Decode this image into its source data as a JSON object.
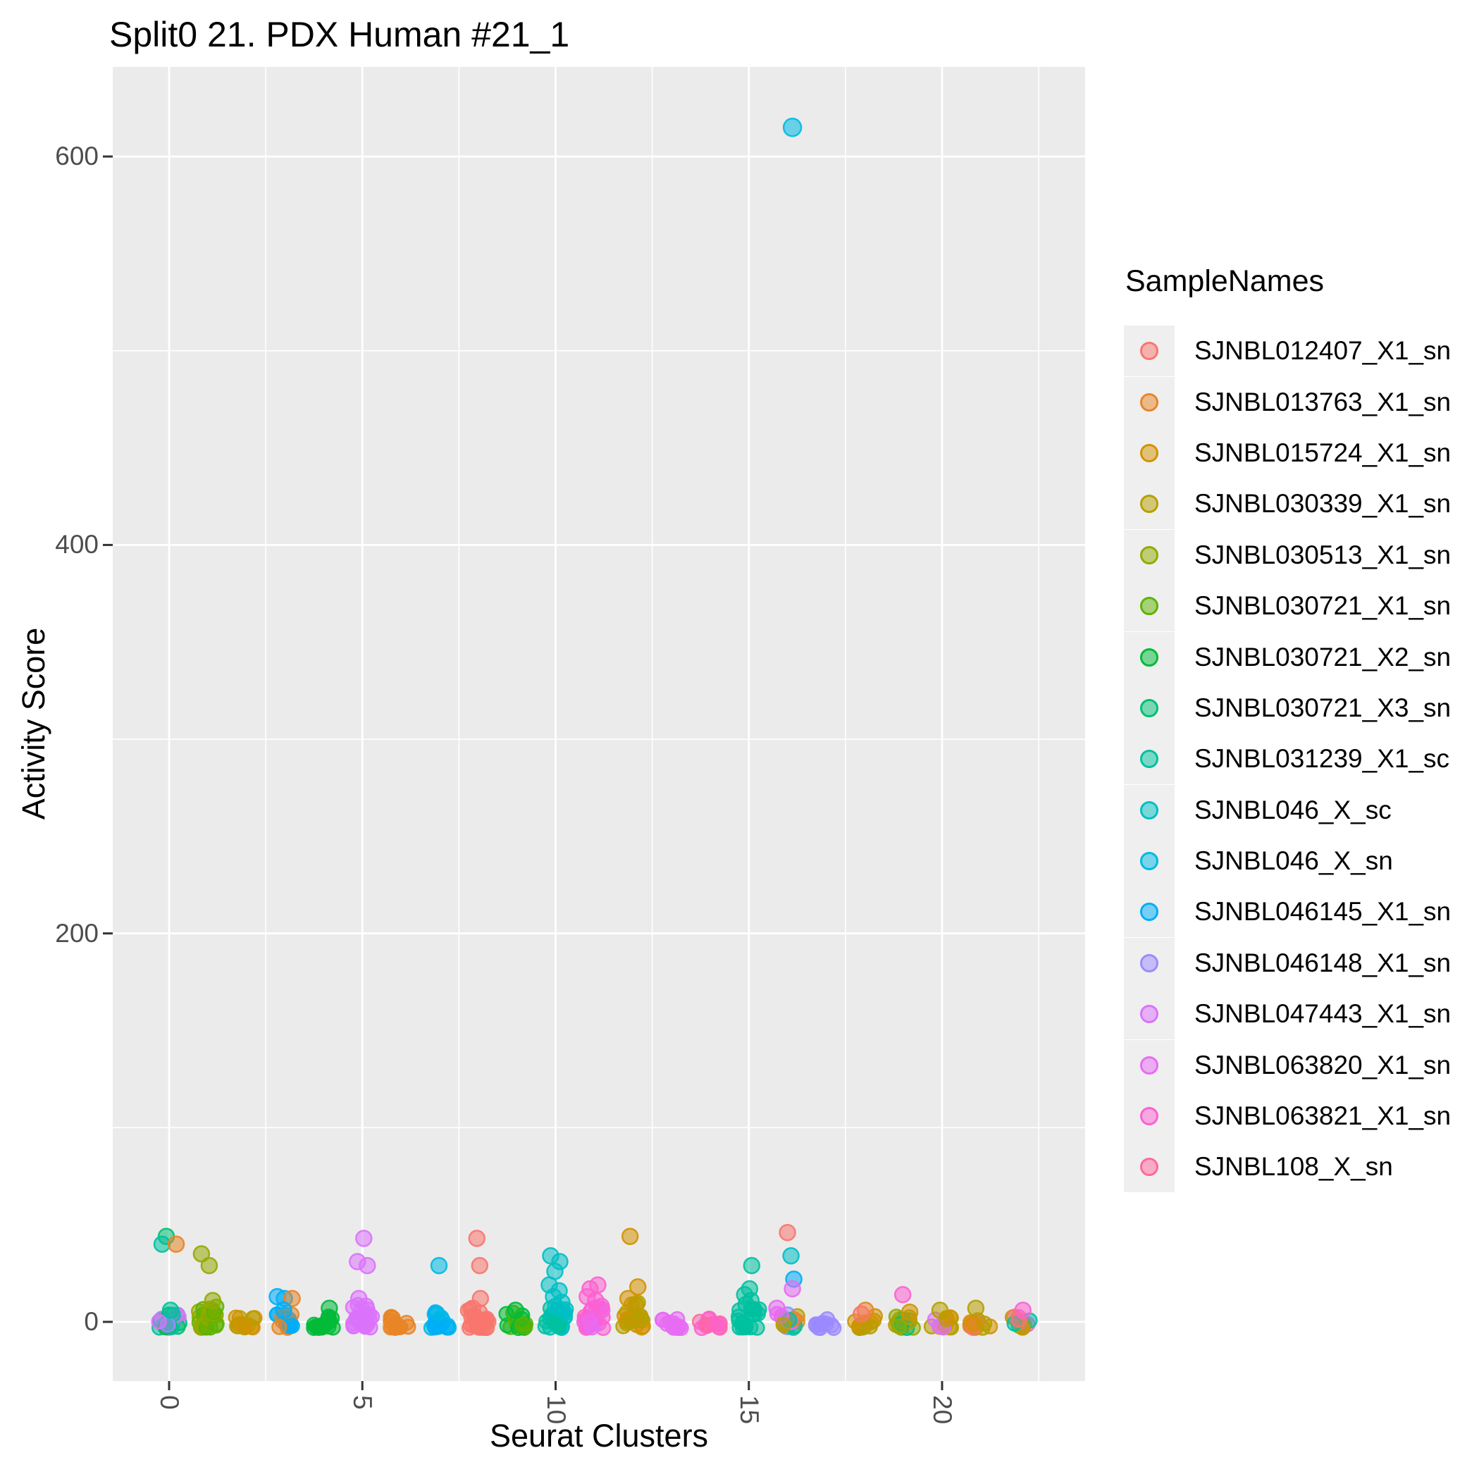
{
  "title": "Split0 21. PDX Human #21_1",
  "x_axis": {
    "label": "Seurat Clusters",
    "tick_labels": [
      "0",
      "5",
      "10",
      "15",
      "20"
    ]
  },
  "y_axis": {
    "label": "Activity Score",
    "tick_labels": [
      "0",
      "200",
      "400",
      "600"
    ]
  },
  "legend": {
    "title": "SampleNames"
  },
  "style": {
    "panel_bg": "#EBEBEB",
    "grid_color": "#FFFFFF",
    "tick_mark_color": "#333333",
    "tick_label_color": "#4D4D4D",
    "legend_key_bg": "#EFEFEF",
    "point_fill_opacity": 0.55,
    "point_stroke_opacity": 0.9
  },
  "chart_data": {
    "type": "scatter",
    "subtype": "jitter",
    "title": "Split0 21. PDX Human #21_1",
    "xlabel": "Seurat Clusters",
    "ylabel": "Activity Score",
    "x_ticks": [
      0,
      5,
      10,
      15,
      20
    ],
    "x_minor_ticks": [
      2.5,
      7.5,
      12.5,
      17.5,
      22.5
    ],
    "y_ticks": [
      0,
      200,
      400,
      600
    ],
    "y_minor_ticks": [
      100,
      300,
      500
    ],
    "xlim": [
      -1.5,
      23.7
    ],
    "ylim": [
      -30,
      646
    ],
    "grid": true,
    "legend_position": "right",
    "legend_title": "SampleNames",
    "samples": [
      {
        "name": "SJNBL012407_X1_sn",
        "color": "#F8766D"
      },
      {
        "name": "SJNBL013763_X1_sn",
        "color": "#E88526"
      },
      {
        "name": "SJNBL015724_X1_sn",
        "color": "#D39200"
      },
      {
        "name": "SJNBL030339_X1_sn",
        "color": "#B79F00"
      },
      {
        "name": "SJNBL030513_X1_sn",
        "color": "#93AA00"
      },
      {
        "name": "SJNBL030721_X1_sn",
        "color": "#5EB300"
      },
      {
        "name": "SJNBL030721_X2_sn",
        "color": "#00BA38"
      },
      {
        "name": "SJNBL030721_X3_sn",
        "color": "#00BF74"
      },
      {
        "name": "SJNBL031239_X1_sc",
        "color": "#00C19F"
      },
      {
        "name": "SJNBL046_X_sc",
        "color": "#00BFC4"
      },
      {
        "name": "SJNBL046_X_sn",
        "color": "#00B9E3"
      },
      {
        "name": "SJNBL046145_X1_sn",
        "color": "#00ADFA"
      },
      {
        "name": "SJNBL046148_X1_sn",
        "color": "#9B8BFF"
      },
      {
        "name": "SJNBL047443_X1_sn",
        "color": "#DB72FB"
      },
      {
        "name": "SJNBL063820_X1_sn",
        "color": "#E76BF3"
      },
      {
        "name": "SJNBL063821_X1_sn",
        "color": "#FD61D1"
      },
      {
        "name": "SJNBL108_X_sn",
        "color": "#FF689E"
      }
    ],
    "base_clusters": [
      {
        "cluster": 0,
        "samples": [
          "SJNBL030721_X2_sn",
          "SJNBL030721_X3_sn",
          "SJNBL031239_X1_sc",
          "SJNBL046148_X1_sn",
          "SJNBL047443_X1_sn"
        ],
        "count": 20,
        "vmax": 4
      },
      {
        "cluster": 1,
        "samples": [
          "SJNBL030513_X1_sn",
          "SJNBL030721_X1_sn"
        ],
        "count": 24,
        "vmax": 9
      },
      {
        "cluster": 2,
        "samples": [
          "SJNBL030339_X1_sn",
          "SJNBL015724_X1_sn"
        ],
        "count": 16,
        "vmax": 3
      },
      {
        "cluster": 3,
        "samples": [
          "SJNBL046145_X1_sn",
          "SJNBL046145_X1_sn",
          "SJNBL013763_X1_sn"
        ],
        "count": 18,
        "vmax": 4
      },
      {
        "cluster": 4,
        "samples": [
          "SJNBL030721_X2_sn"
        ],
        "count": 16,
        "vmax": 4
      },
      {
        "cluster": 5,
        "samples": [
          "SJNBL047443_X1_sn"
        ],
        "count": 22,
        "vmax": 9
      },
      {
        "cluster": 6,
        "samples": [
          "SJNBL013763_X1_sn"
        ],
        "count": 14,
        "vmax": 3
      },
      {
        "cluster": 7,
        "samples": [
          "SJNBL046_X_sn",
          "SJNBL046145_X1_sn"
        ],
        "count": 18,
        "vmax": 5
      },
      {
        "cluster": 8,
        "samples": [
          "SJNBL012407_X1_sn"
        ],
        "count": 22,
        "vmax": 8
      },
      {
        "cluster": 9,
        "samples": [
          "SJNBL030721_X2_sn",
          "SJNBL030721_X1_sn"
        ],
        "count": 16,
        "vmax": 5
      },
      {
        "cluster": 10,
        "samples": [
          "SJNBL046_X_sc",
          "SJNBL031239_X1_sc"
        ],
        "count": 24,
        "vmax": 7
      },
      {
        "cluster": 11,
        "samples": [
          "SJNBL063821_X1_sn",
          "SJNBL063820_X1_sn"
        ],
        "count": 24,
        "vmax": 8
      },
      {
        "cluster": 12,
        "samples": [
          "SJNBL015724_X1_sn",
          "SJNBL030339_X1_sn"
        ],
        "count": 20,
        "vmax": 11
      },
      {
        "cluster": 13,
        "samples": [
          "SJNBL063820_X1_sn"
        ],
        "count": 12,
        "vmax": 2
      },
      {
        "cluster": 14,
        "samples": [
          "SJNBL108_X_sn",
          "SJNBL063821_X1_sn"
        ],
        "count": 12,
        "vmax": 2
      },
      {
        "cluster": 15,
        "samples": [
          "SJNBL031239_X1_sc"
        ],
        "count": 20,
        "vmax": 7
      },
      {
        "cluster": 16,
        "samples": [
          "SJNBL031239_X1_sc",
          "SJNBL063820_X1_sn",
          "SJNBL030339_X1_sn",
          "SJNBL046148_X1_sn",
          "SJNBL013763_X1_sn"
        ],
        "count": 18,
        "vmax": 6
      },
      {
        "cluster": 17,
        "samples": [
          "SJNBL046148_X1_sn"
        ],
        "count": 12,
        "vmax": 2
      },
      {
        "cluster": 18,
        "samples": [
          "SJNBL030339_X1_sn",
          "SJNBL015724_X1_sn"
        ],
        "count": 14,
        "vmax": 3
      },
      {
        "cluster": 19,
        "samples": [
          "SJNBL030339_X1_sn",
          "SJNBL030513_X1_sn",
          "SJNBL030721_X3_sn"
        ],
        "count": 14,
        "vmax": 3
      },
      {
        "cluster": 20,
        "samples": [
          "SJNBL030339_X1_sn",
          "SJNBL015724_X1_sn",
          "SJNBL047443_X1_sn"
        ],
        "count": 14,
        "vmax": 3
      },
      {
        "cluster": 21,
        "samples": [
          "SJNBL030339_X1_sn",
          "SJNBL015724_X1_sn",
          "SJNBL012407_X1_sn"
        ],
        "count": 14,
        "vmax": 3
      },
      {
        "cluster": 22,
        "samples": [
          "SJNBL012407_X1_sn",
          "SJNBL013763_X1_sn",
          "SJNBL063821_X1_sn",
          "SJNBL030339_X1_sn",
          "SJNBL031239_X1_sc"
        ],
        "count": 16,
        "vmax": 3
      }
    ],
    "points": [
      {
        "cluster": 0,
        "value": 44,
        "sample": "SJNBL030721_X3_sn",
        "dx": -4
      },
      {
        "cluster": 0,
        "value": 40,
        "sample": "SJNBL031239_X1_sc",
        "dx": -10
      },
      {
        "cluster": 0,
        "value": 40,
        "sample": "SJNBL013763_X1_sn",
        "dx": 10
      },
      {
        "cluster": 0,
        "value": 6,
        "sample": "SJNBL031239_X1_sc",
        "dx": 2
      },
      {
        "cluster": 1,
        "value": 35,
        "sample": "SJNBL030513_X1_sn",
        "dx": -9
      },
      {
        "cluster": 1,
        "value": 29,
        "sample": "SJNBL030513_X1_sn",
        "dx": 2
      },
      {
        "cluster": 1,
        "value": 11,
        "sample": "SJNBL030513_X1_sn",
        "dx": 7
      },
      {
        "cluster": 3,
        "value": 13,
        "sample": "SJNBL046145_X1_sn",
        "dx": -11
      },
      {
        "cluster": 3,
        "value": 12,
        "sample": "SJNBL046145_X1_sn",
        "dx": -1
      },
      {
        "cluster": 3,
        "value": 12,
        "sample": "SJNBL013763_X1_sn",
        "dx": 10
      },
      {
        "cluster": 3,
        "value": 6,
        "sample": "SJNBL046145_X1_sn",
        "dx": -2
      },
      {
        "cluster": 4,
        "value": 7,
        "sample": "SJNBL030721_X2_sn",
        "dx": 8
      },
      {
        "cluster": 5,
        "value": 43,
        "sample": "SJNBL047443_X1_sn",
        "dx": 2
      },
      {
        "cluster": 5,
        "value": 31,
        "sample": "SJNBL047443_X1_sn",
        "dx": -7
      },
      {
        "cluster": 5,
        "value": 29,
        "sample": "SJNBL047443_X1_sn",
        "dx": 7
      },
      {
        "cluster": 5,
        "value": 12,
        "sample": "SJNBL047443_X1_sn",
        "dx": -5
      },
      {
        "cluster": 5,
        "value": 8,
        "sample": "SJNBL047443_X1_sn",
        "dx": 5
      },
      {
        "cluster": 7,
        "value": 29,
        "sample": "SJNBL046_X_sn",
        "dx": -1
      },
      {
        "cluster": 8,
        "value": 43,
        "sample": "SJNBL012407_X1_sn",
        "dx": -2
      },
      {
        "cluster": 8,
        "value": 29,
        "sample": "SJNBL012407_X1_sn",
        "dx": 2
      },
      {
        "cluster": 8,
        "value": 12,
        "sample": "SJNBL012407_X1_sn",
        "dx": 3
      },
      {
        "cluster": 8,
        "value": 7,
        "sample": "SJNBL012407_X1_sn",
        "dx": -8
      },
      {
        "cluster": 9,
        "value": 6,
        "sample": "SJNBL030721_X2_sn",
        "dx": -2
      },
      {
        "cluster": 10,
        "value": 34,
        "sample": "SJNBL046_X_sc",
        "dx": -7
      },
      {
        "cluster": 10,
        "value": 31,
        "sample": "SJNBL046_X_sc",
        "dx": 6
      },
      {
        "cluster": 10,
        "value": 26,
        "sample": "SJNBL046_X_sc",
        "dx": -1
      },
      {
        "cluster": 10,
        "value": 19,
        "sample": "SJNBL046_X_sc",
        "dx": -9
      },
      {
        "cluster": 10,
        "value": 16,
        "sample": "SJNBL046_X_sc",
        "dx": 5
      },
      {
        "cluster": 10,
        "value": 13,
        "sample": "SJNBL046_X_sc",
        "dx": -3
      },
      {
        "cluster": 10,
        "value": 10,
        "sample": "SJNBL046_X_sc",
        "dx": 9
      },
      {
        "cluster": 10,
        "value": 8,
        "sample": "SJNBL046_X_sc",
        "dx": 0
      },
      {
        "cluster": 11,
        "value": 19,
        "sample": "SJNBL063821_X1_sn",
        "dx": 5
      },
      {
        "cluster": 11,
        "value": 17,
        "sample": "SJNBL063821_X1_sn",
        "dx": -6
      },
      {
        "cluster": 11,
        "value": 13,
        "sample": "SJNBL063821_X1_sn",
        "dx": -10
      },
      {
        "cluster": 11,
        "value": 11,
        "sample": "SJNBL063821_X1_sn",
        "dx": 2
      },
      {
        "cluster": 11,
        "value": 8,
        "sample": "SJNBL063821_X1_sn",
        "dx": 10
      },
      {
        "cluster": 12,
        "value": 44,
        "sample": "SJNBL015724_X1_sn",
        "dx": -4
      },
      {
        "cluster": 12,
        "value": 18,
        "sample": "SJNBL015724_X1_sn",
        "dx": 7
      },
      {
        "cluster": 12,
        "value": 12,
        "sample": "SJNBL015724_X1_sn",
        "dx": -7
      },
      {
        "cluster": 12,
        "value": 9,
        "sample": "SJNBL030339_X1_sn",
        "dx": 4
      },
      {
        "cluster": 15,
        "value": 29,
        "sample": "SJNBL031239_X1_sc",
        "dx": 4
      },
      {
        "cluster": 15,
        "value": 17,
        "sample": "SJNBL031239_X1_sc",
        "dx": 1
      },
      {
        "cluster": 15,
        "value": 14,
        "sample": "SJNBL031239_X1_sc",
        "dx": -6
      },
      {
        "cluster": 15,
        "value": 11,
        "sample": "SJNBL031239_X1_sc",
        "dx": 3
      },
      {
        "cluster": 15,
        "value": 9,
        "sample": "SJNBL031239_X1_sc",
        "dx": -4
      },
      {
        "cluster": 16,
        "value": 46,
        "sample": "SJNBL012407_X1_sn",
        "dx": 0
      },
      {
        "cluster": 16,
        "value": 34,
        "sample": "SJNBL046_X_sc",
        "dx": 5
      },
      {
        "cluster": 16,
        "value": 22,
        "sample": "SJNBL046145_X1_sn",
        "dx": 9
      },
      {
        "cluster": 16,
        "value": 17,
        "sample": "SJNBL063820_X1_sn",
        "dx": 7
      },
      {
        "cluster": 16,
        "value": 7,
        "sample": "SJNBL063820_X1_sn",
        "dx": -15
      },
      {
        "cluster": 18,
        "value": 6,
        "sample": "SJNBL013763_X1_sn",
        "dx": 1
      },
      {
        "cluster": 18,
        "value": 4,
        "sample": "SJNBL012407_X1_sn",
        "dx": -5
      },
      {
        "cluster": 19,
        "value": 14,
        "sample": "SJNBL063821_X1_sn",
        "dx": -1
      },
      {
        "cluster": 19,
        "value": 5,
        "sample": "SJNBL015724_X1_sn",
        "dx": 9
      },
      {
        "cluster": 20,
        "value": 6,
        "sample": "SJNBL030339_X1_sn",
        "dx": -3
      },
      {
        "cluster": 21,
        "value": 7,
        "sample": "SJNBL030339_X1_sn",
        "dx": -7
      },
      {
        "cluster": 22,
        "value": 6,
        "sample": "SJNBL063821_X1_sn",
        "dx": 5
      }
    ],
    "outlier_point": {
      "cluster": 16,
      "value": 615,
      "sample": "SJNBL046_X_sn"
    }
  }
}
